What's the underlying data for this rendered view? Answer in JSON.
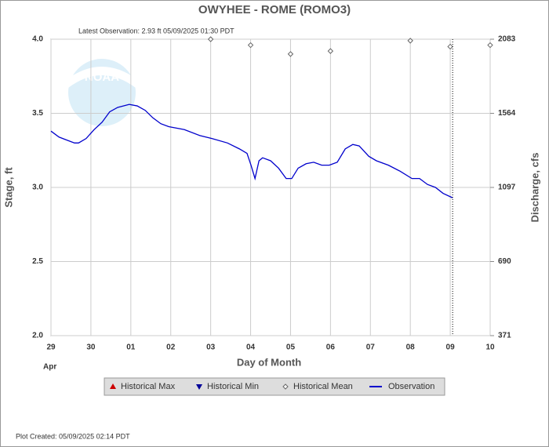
{
  "chart_data": {
    "type": "line",
    "title": "OWYHEE - ROME  (ROMO3)",
    "subtitle": "Latest Observation: 2.93 ft 05/09/2025 01:30 PDT",
    "footer": "Plot Created: 05/09/2025 02:14 PDT",
    "x_label": "Day of Month",
    "x_month": "Apr",
    "y_label": "Stage, ft",
    "y2_label": "Discharge, cfs",
    "xlim": [
      0,
      11
    ],
    "xticks": [
      {
        "value": 0,
        "label": "29"
      },
      {
        "value": 1,
        "label": "30"
      },
      {
        "value": 2,
        "label": "01"
      },
      {
        "value": 3,
        "label": "02"
      },
      {
        "value": 4,
        "label": "03"
      },
      {
        "value": 5,
        "label": "04"
      },
      {
        "value": 6,
        "label": "05"
      },
      {
        "value": 7,
        "label": "06"
      },
      {
        "value": 8,
        "label": "07"
      },
      {
        "value": 9,
        "label": "08"
      },
      {
        "value": 10,
        "label": "09"
      },
      {
        "value": 11,
        "label": "10"
      }
    ],
    "ylim": [
      2,
      4
    ],
    "yticks": [
      {
        "value": 2,
        "label": "2.0"
      },
      {
        "value": 2.5,
        "label": "2.5"
      },
      {
        "value": 3,
        "label": "3.0"
      },
      {
        "value": 3.5,
        "label": "3.5"
      },
      {
        "value": 4,
        "label": "4.0"
      }
    ],
    "y2lim": [
      371,
      2083
    ],
    "y2ticks": [
      371,
      690,
      1097,
      1564,
      2083
    ],
    "grid": true,
    "series": [
      {
        "name": "Historical Max",
        "color": "#cc0000",
        "marker": "triangle-up",
        "x": [],
        "values": []
      },
      {
        "name": "Historical Min",
        "color": "#000099",
        "marker": "triangle-down",
        "x": [],
        "values": []
      },
      {
        "name": "Historical Mean",
        "color": "#666666",
        "marker": "diamond",
        "x": [
          4,
          5,
          6,
          7,
          9,
          10,
          11
        ],
        "values": [
          4.0,
          3.96,
          3.9,
          3.92,
          3.99,
          3.95,
          3.96
        ]
      },
      {
        "name": "Observation",
        "color": "#0000cc",
        "marker": "line",
        "x": [
          0,
          0.2,
          0.39,
          0.59,
          0.69,
          0.88,
          1.08,
          1.28,
          1.47,
          1.67,
          1.96,
          2.16,
          2.36,
          2.55,
          2.75,
          2.95,
          3.34,
          3.73,
          4.03,
          4.42,
          4.72,
          4.91,
          5.01,
          5.11,
          5.21,
          5.3,
          5.5,
          5.7,
          5.89,
          6.03,
          6.19,
          6.39,
          6.58,
          6.78,
          6.97,
          7.17,
          7.37,
          7.56,
          7.72,
          7.96,
          8.15,
          8.45,
          8.74,
          9.04,
          9.23,
          9.43,
          9.63,
          9.82,
          10.06
        ],
        "values": [
          3.38,
          3.34,
          3.32,
          3.3,
          3.3,
          3.33,
          3.39,
          3.44,
          3.51,
          3.54,
          3.56,
          3.55,
          3.52,
          3.47,
          3.43,
          3.41,
          3.39,
          3.35,
          3.33,
          3.3,
          3.26,
          3.23,
          3.15,
          3.06,
          3.18,
          3.2,
          3.18,
          3.13,
          3.06,
          3.06,
          3.13,
          3.16,
          3.17,
          3.15,
          3.15,
          3.17,
          3.26,
          3.29,
          3.28,
          3.21,
          3.18,
          3.15,
          3.11,
          3.06,
          3.06,
          3.02,
          3.0,
          2.96,
          2.93
        ]
      }
    ]
  }
}
